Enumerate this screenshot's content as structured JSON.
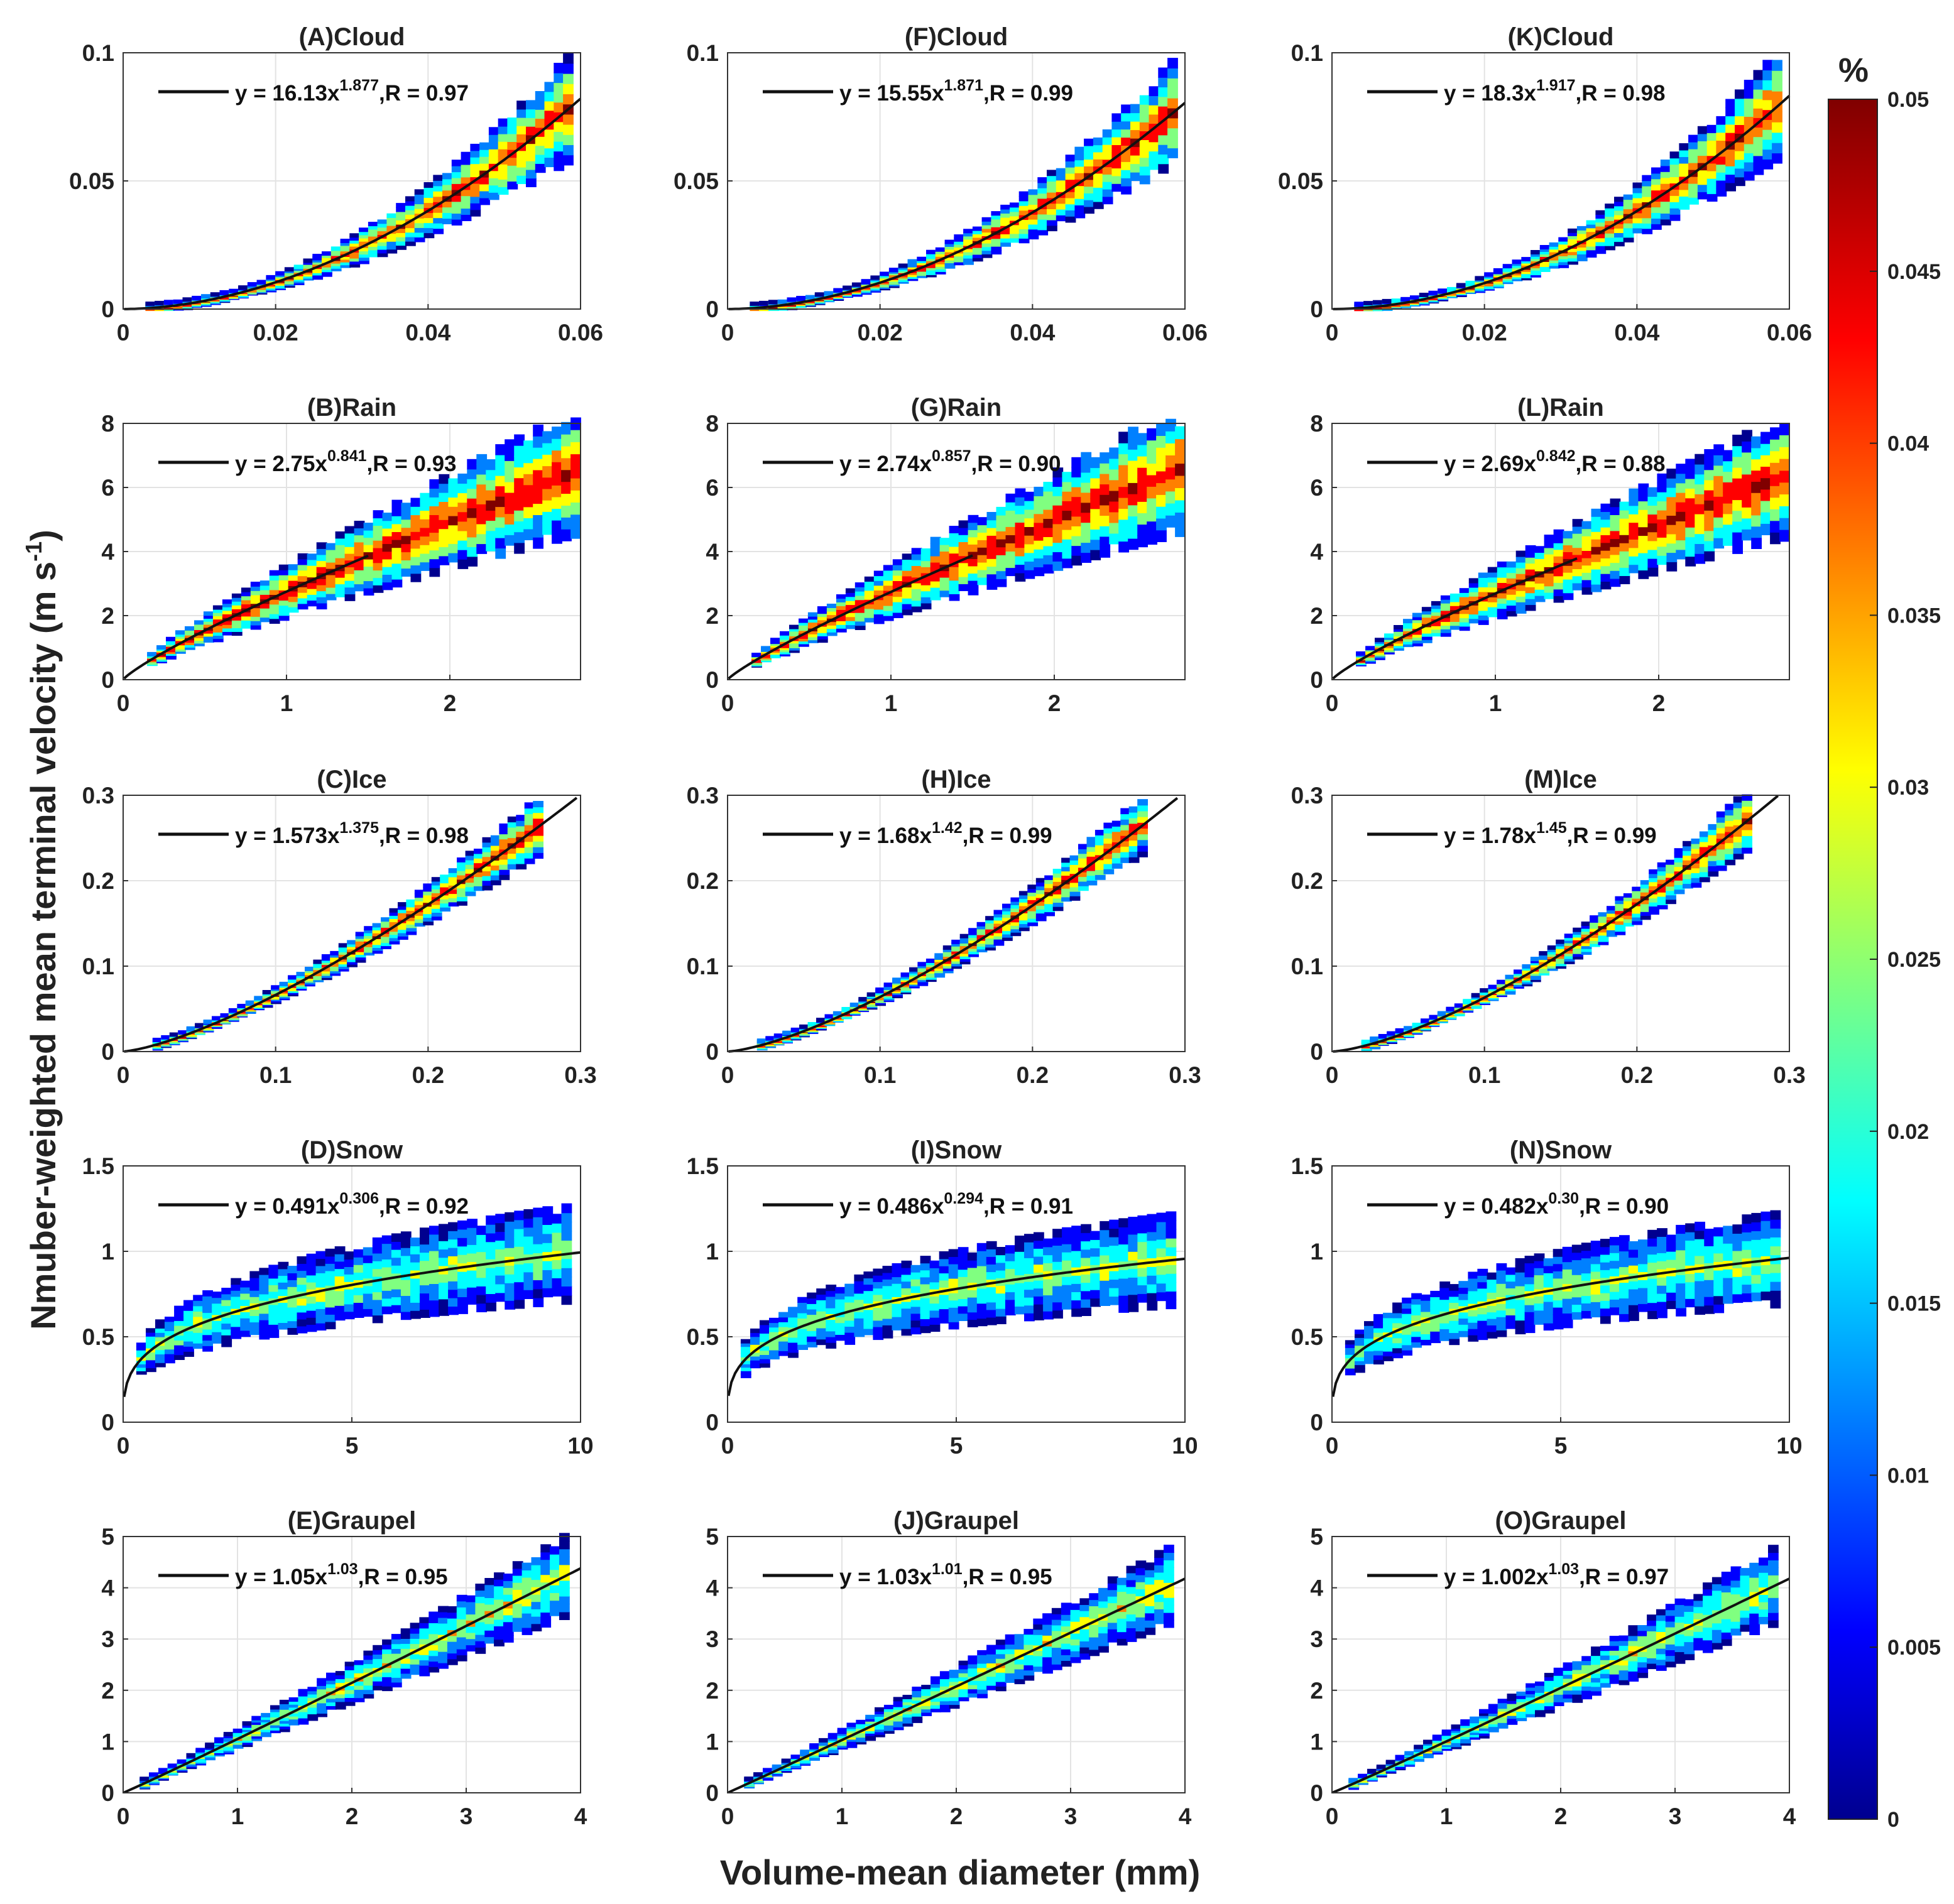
{
  "figure": {
    "xlabel": "Volume-mean diameter (mm)",
    "ylabel_main": "Nmuber-weighted mean terminal velocity (m s",
    "ylabel_exp": "-1",
    "ylabel_close": ")"
  },
  "colorbar": {
    "unit": "%",
    "range": [
      0,
      0.05
    ],
    "ticks": [
      "0",
      "0.005",
      "0.01",
      "0.015",
      "0.02",
      "0.025",
      "0.03",
      "0.035",
      "0.04",
      "0.045",
      "0.05"
    ],
    "colors": [
      "#00008f",
      "#0000ff",
      "#0080ff",
      "#00ffff",
      "#80ff80",
      "#ffff00",
      "#ff8000",
      "#ff0000",
      "#800000"
    ]
  },
  "chart_data": [
    {
      "type": "heatmap",
      "id": "A",
      "title": "(A)Cloud",
      "category": "Cloud",
      "xlim": [
        0,
        0.06
      ],
      "ylim": [
        0,
        0.1
      ],
      "xticks": [
        "0",
        "0.02",
        "0.04",
        "0.06"
      ],
      "yticks": [
        "0",
        "0.05",
        "0.1"
      ],
      "fit": {
        "a": 16.13,
        "b": 1.877,
        "R": 0.97
      },
      "eq": {
        "pre": "y = 16.13x",
        "exp": "1.877",
        "post": ",R = 0.97"
      }
    },
    {
      "type": "heatmap",
      "id": "F",
      "title": "(F)Cloud",
      "category": "Cloud",
      "xlim": [
        0,
        0.06
      ],
      "ylim": [
        0,
        0.1
      ],
      "xticks": [
        "0",
        "0.02",
        "0.04",
        "0.06"
      ],
      "yticks": [
        "0",
        "0.05",
        "0.1"
      ],
      "fit": {
        "a": 15.55,
        "b": 1.871,
        "R": 0.99
      },
      "eq": {
        "pre": "y = 15.55x",
        "exp": "1.871",
        "post": ",R = 0.99"
      }
    },
    {
      "type": "heatmap",
      "id": "K",
      "title": "(K)Cloud",
      "category": "Cloud",
      "xlim": [
        0,
        0.06
      ],
      "ylim": [
        0,
        0.1
      ],
      "xticks": [
        "0",
        "0.02",
        "0.04",
        "0.06"
      ],
      "yticks": [
        "0",
        "0.05",
        "0.1"
      ],
      "fit": {
        "a": 18.3,
        "b": 1.917,
        "R": 0.98
      },
      "eq": {
        "pre": "y = 18.3x",
        "exp": "1.917",
        "post": ",R = 0.98"
      }
    },
    {
      "type": "heatmap",
      "id": "B",
      "title": "(B)Rain",
      "category": "Rain",
      "xlim": [
        0,
        2.8
      ],
      "ylim": [
        0,
        8
      ],
      "xticks": [
        "0",
        "1",
        "2"
      ],
      "yticks": [
        "0",
        "2",
        "4",
        "6",
        "8"
      ],
      "fit": {
        "a": 2.75,
        "b": 0.841,
        "R": 0.93
      },
      "eq": {
        "pre": "y = 2.75x",
        "exp": "0.841",
        "post": ",R = 0.93"
      }
    },
    {
      "type": "heatmap",
      "id": "G",
      "title": "(G)Rain",
      "category": "Rain",
      "xlim": [
        0,
        2.8
      ],
      "ylim": [
        0,
        8
      ],
      "xticks": [
        "0",
        "1",
        "2"
      ],
      "yticks": [
        "0",
        "2",
        "4",
        "6",
        "8"
      ],
      "fit": {
        "a": 2.74,
        "b": 0.857,
        "R": 0.9
      },
      "eq": {
        "pre": "y = 2.74x",
        "exp": "0.857",
        "post": ",R = 0.90"
      }
    },
    {
      "type": "heatmap",
      "id": "L",
      "title": "(L)Rain",
      "category": "Rain",
      "xlim": [
        0,
        2.8
      ],
      "ylim": [
        0,
        8
      ],
      "xticks": [
        "0",
        "1",
        "2"
      ],
      "yticks": [
        "0",
        "2",
        "4",
        "6",
        "8"
      ],
      "fit": {
        "a": 2.69,
        "b": 0.842,
        "R": 0.88
      },
      "eq": {
        "pre": "y = 2.69x",
        "exp": "0.842",
        "post": ",R = 0.88"
      }
    },
    {
      "type": "heatmap",
      "id": "C",
      "title": "(C)Ice",
      "category": "Ice",
      "xlim": [
        0,
        0.3
      ],
      "ylim": [
        0,
        0.3
      ],
      "xticks": [
        "0",
        "0.1",
        "0.2",
        "0.3"
      ],
      "yticks": [
        "0",
        "0.1",
        "0.2",
        "0.3"
      ],
      "fit": {
        "a": 1.573,
        "b": 1.375,
        "R": 0.98
      },
      "eq": {
        "pre": "y = 1.573x",
        "exp": "1.375",
        "post": ",R = 0.98"
      }
    },
    {
      "type": "heatmap",
      "id": "H",
      "title": "(H)Ice",
      "category": "Ice",
      "xlim": [
        0,
        0.3
      ],
      "ylim": [
        0,
        0.3
      ],
      "xticks": [
        "0",
        "0.1",
        "0.2",
        "0.3"
      ],
      "yticks": [
        "0",
        "0.1",
        "0.2",
        "0.3"
      ],
      "fit": {
        "a": 1.68,
        "b": 1.42,
        "R": 0.99
      },
      "eq": {
        "pre": "y = 1.68x",
        "exp": "1.42",
        "post": ",R = 0.99"
      }
    },
    {
      "type": "heatmap",
      "id": "M",
      "title": "(M)Ice",
      "category": "Ice",
      "xlim": [
        0,
        0.3
      ],
      "ylim": [
        0,
        0.3
      ],
      "xticks": [
        "0",
        "0.1",
        "0.2",
        "0.3"
      ],
      "yticks": [
        "0",
        "0.1",
        "0.2",
        "0.3"
      ],
      "fit": {
        "a": 1.78,
        "b": 1.45,
        "R": 0.99
      },
      "eq": {
        "pre": "y = 1.78x",
        "exp": "1.45",
        "post": ",R = 0.99"
      }
    },
    {
      "type": "heatmap",
      "id": "D",
      "title": "(D)Snow",
      "category": "Snow",
      "xlim": [
        0,
        10
      ],
      "ylim": [
        0,
        1.5
      ],
      "xticks": [
        "0",
        "5",
        "10"
      ],
      "yticks": [
        "0",
        "0.5",
        "1",
        "1.5"
      ],
      "fit": {
        "a": 0.491,
        "b": 0.306,
        "R": 0.92
      },
      "eq": {
        "pre": "y = 0.491x",
        "exp": "0.306",
        "post": ",R = 0.92"
      }
    },
    {
      "type": "heatmap",
      "id": "I",
      "title": "(I)Snow",
      "category": "Snow",
      "xlim": [
        0,
        10
      ],
      "ylim": [
        0,
        1.5
      ],
      "xticks": [
        "0",
        "5",
        "10"
      ],
      "yticks": [
        "0",
        "0.5",
        "1",
        "1.5"
      ],
      "fit": {
        "a": 0.486,
        "b": 0.294,
        "R": 0.91
      },
      "eq": {
        "pre": "y = 0.486x",
        "exp": "0.294",
        "post": ",R = 0.91"
      }
    },
    {
      "type": "heatmap",
      "id": "N",
      "title": "(N)Snow",
      "category": "Snow",
      "xlim": [
        0,
        10
      ],
      "ylim": [
        0,
        1.5
      ],
      "xticks": [
        "0",
        "5",
        "10"
      ],
      "yticks": [
        "0",
        "0.5",
        "1",
        "1.5"
      ],
      "fit": {
        "a": 0.482,
        "b": 0.3,
        "R": 0.9
      },
      "eq": {
        "pre": "y = 0.482x",
        "exp": "0.30",
        "post": ",R = 0.90"
      }
    },
    {
      "type": "heatmap",
      "id": "E",
      "title": "(E)Graupel",
      "category": "Graupel",
      "xlim": [
        0,
        4
      ],
      "ylim": [
        0,
        5
      ],
      "xticks": [
        "0",
        "1",
        "2",
        "3",
        "4"
      ],
      "yticks": [
        "0",
        "1",
        "2",
        "3",
        "4",
        "5"
      ],
      "fit": {
        "a": 1.05,
        "b": 1.03,
        "R": 0.95
      },
      "eq": {
        "pre": "y = 1.05x",
        "exp": "1.03",
        "post": ",R = 0.95"
      }
    },
    {
      "type": "heatmap",
      "id": "J",
      "title": "(J)Graupel",
      "category": "Graupel",
      "xlim": [
        0,
        4
      ],
      "ylim": [
        0,
        5
      ],
      "xticks": [
        "0",
        "1",
        "2",
        "3",
        "4"
      ],
      "yticks": [
        "0",
        "1",
        "2",
        "3",
        "4",
        "5"
      ],
      "fit": {
        "a": 1.03,
        "b": 1.01,
        "R": 0.95
      },
      "eq": {
        "pre": "y = 1.03x",
        "exp": "1.01",
        "post": ",R = 0.95"
      }
    },
    {
      "type": "heatmap",
      "id": "O",
      "title": "(O)Graupel",
      "category": "Graupel",
      "xlim": [
        0,
        4
      ],
      "ylim": [
        0,
        5
      ],
      "xticks": [
        "0",
        "1",
        "2",
        "3",
        "4"
      ],
      "yticks": [
        "0",
        "1",
        "2",
        "3",
        "4",
        "5"
      ],
      "fit": {
        "a": 1.002,
        "b": 1.03,
        "R": 0.97
      },
      "eq": {
        "pre": "y = 1.002x",
        "exp": "1.03",
        "post": ",R = 0.97"
      }
    }
  ]
}
